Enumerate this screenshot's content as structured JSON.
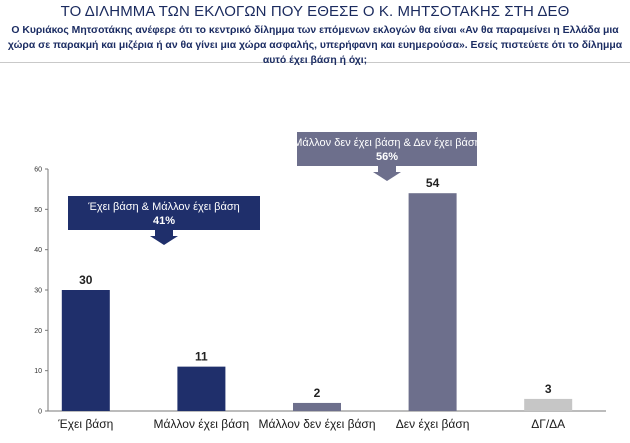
{
  "header": {
    "title": "ΤΟ ΔΙΛΗΜΜΑ ΤΩΝ ΕΚΛΟΓΩΝ ΠΟΥ ΕΘΕΣΕ Ο Κ. ΜΗΤΣΟΤΑΚΗΣ ΣΤΗ ΔΕΘ",
    "subtitle": "Ο Κυριάκος Μητσοτάκης ανέφερε ότι το κεντρικό δίλημμα των επόμενων εκλογών θα είναι «Αν θα παραμείνει η Ελλάδα μια χώρα σε παρακμή και μιζέρια ή αν θα γίνει μια χώρα ασφαλής, υπερήφανη και ευημερούσα». Εσείς πιστεύετε ότι το δίλημμα αυτό έχει βάση ή όχι;"
  },
  "chart_data": {
    "type": "bar",
    "categories": [
      "Έχει βάση",
      "Μάλλον έχει βάση",
      "Μάλλον δεν έχει βάση",
      "Δεν έχει βάση",
      "ΔΓ/ΔΑ"
    ],
    "values": [
      30,
      11,
      2,
      54,
      3
    ],
    "colors": [
      "#1f2f6b",
      "#1f2f6b",
      "#6d6f8c",
      "#6d6f8c",
      "#c6c6c6"
    ],
    "ylim": [
      0,
      60
    ],
    "yticks": [
      0,
      10,
      20,
      30,
      40,
      50,
      60
    ],
    "grid": false,
    "annotations": [
      {
        "label": "Έχει βάση & Μάλλον έχει βάση",
        "value": "41%",
        "color": "#1f2f6b"
      },
      {
        "label": "Μάλλον δεν έχει βάση & Δεν έχει βάση",
        "value": "56%",
        "color": "#6d6f8c"
      }
    ]
  }
}
